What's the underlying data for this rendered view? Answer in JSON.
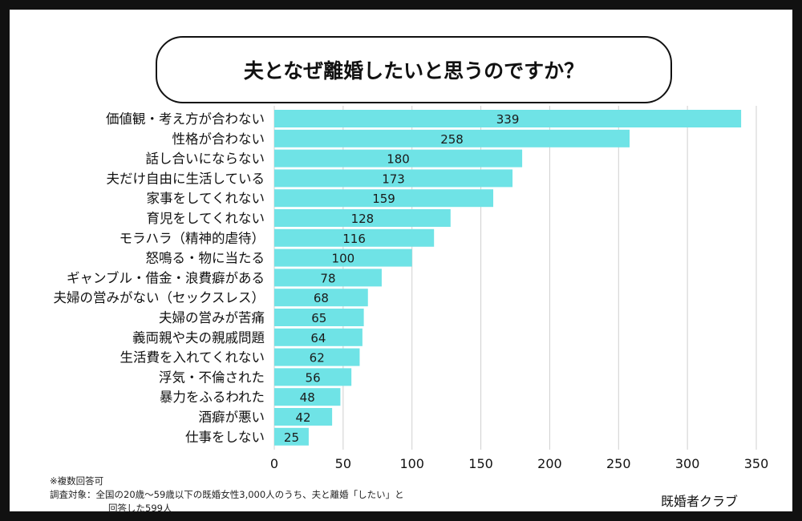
{
  "title": "夫となぜ離婚したいと思うのですか？",
  "chart_data": {
    "type": "bar",
    "orientation": "horizontal",
    "categories": [
      "価値観・考え方が合わない",
      "性格が合わない",
      "話し合いにならない",
      "夫だけ自由に生活している",
      "家事をしてくれない",
      "育児をしてくれない",
      "モラハラ（精神的虐待）",
      "怒鳴る・物に当たる",
      "ギャンブル・借金・浪費癖がある",
      "夫婦の営みがない（セックスレス）",
      "夫婦の営みが苦痛",
      "義両親や夫の親戚問題",
      "生活費を入れてくれない",
      "浮気・不倫された",
      "暴力をふるわれた",
      "酒癖が悪い",
      "仕事をしない"
    ],
    "values": [
      339,
      258,
      180,
      173,
      159,
      128,
      116,
      100,
      78,
      68,
      65,
      64,
      62,
      56,
      48,
      42,
      25
    ],
    "xlim": [
      0,
      350
    ],
    "xticks": [
      0,
      50,
      100,
      150,
      200,
      250,
      300,
      350
    ],
    "grid": "vertical",
    "bar_color": "#6fe3e6",
    "gridline_color": "#d0d0d0",
    "data_labels": "inside-center"
  },
  "notes": {
    "line1": "※複数回答可",
    "line2": "調査対象：全国の20歳〜59歳以下の既婚女性3,000人のうち、夫と離婚「したい」と",
    "line3": "回答した599人"
  },
  "source": "既婚者クラブ"
}
